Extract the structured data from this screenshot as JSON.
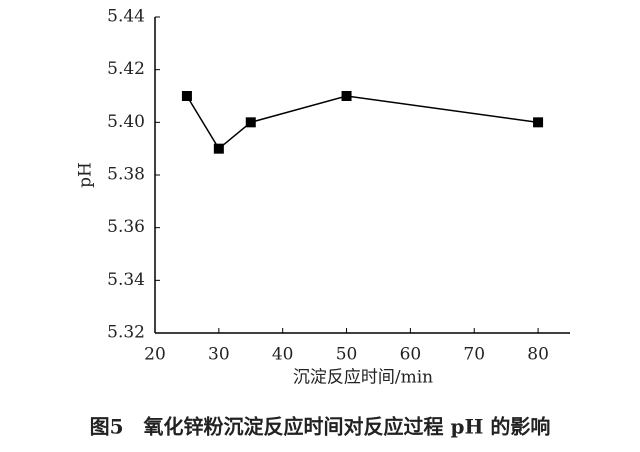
{
  "chart_data": {
    "type": "line",
    "x": [
      25,
      30,
      35,
      50,
      80
    ],
    "series": [
      {
        "color": "#000000",
        "values": [
          5.41,
          5.39,
          5.4,
          5.41,
          5.4
        ]
      }
    ],
    "xlabel": "沉淀反应时间/min",
    "ylabel": "pH",
    "xlim": [
      20,
      85
    ],
    "xticks": [
      20,
      30,
      40,
      50,
      60,
      70,
      80
    ],
    "ylim": [
      5.32,
      5.44
    ],
    "yticks": [
      5.32,
      5.34,
      5.36,
      5.38,
      {
        "value": 5.4,
        "label": "5.40"
      },
      5.42,
      5.44
    ],
    "caption": "图5　氧化锌粉沉淀反应时间对反应过程 pH 的影响"
  }
}
